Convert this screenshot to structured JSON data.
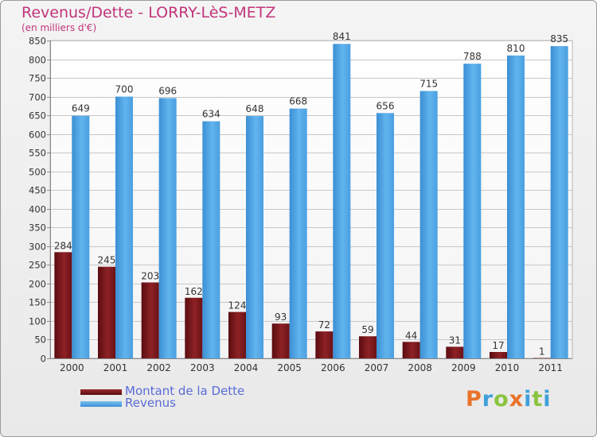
{
  "header": {
    "title": "Revenus/Dette - LORRY-LèS-METZ",
    "subtitle": "(en milliers d'€)"
  },
  "colors": {
    "dette": "#7a1418",
    "revenus": "#4ea6e6",
    "title": "#c0357a",
    "legend_text": "#5a6bd6"
  },
  "legend": {
    "dette_label": "Montant de la Dette",
    "revenus_label": "Revenus"
  },
  "logo": {
    "text": "Proxiti"
  },
  "chart_data": {
    "type": "bar",
    "title": "Revenus/Dette - LORRY-LèS-METZ",
    "subtitle": "(en milliers d'€)",
    "categories": [
      "2000",
      "2001",
      "2002",
      "2003",
      "2004",
      "2005",
      "2006",
      "2007",
      "2008",
      "2009",
      "2010",
      "2011"
    ],
    "series": [
      {
        "name": "Montant de la Dette",
        "color": "#7a1418",
        "values": [
          284,
          245,
          203,
          162,
          124,
          93,
          72,
          59,
          44,
          31,
          17,
          1
        ]
      },
      {
        "name": "Revenus",
        "color": "#4ea6e6",
        "values": [
          649,
          700,
          696,
          634,
          648,
          668,
          841,
          656,
          715,
          788,
          810,
          835
        ]
      }
    ],
    "ylim": [
      0,
      850
    ],
    "yticks": [
      0,
      50,
      100,
      150,
      200,
      250,
      300,
      350,
      400,
      450,
      500,
      550,
      600,
      650,
      700,
      750,
      800,
      850
    ],
    "grid": true,
    "legend_position": "bottom-left"
  }
}
